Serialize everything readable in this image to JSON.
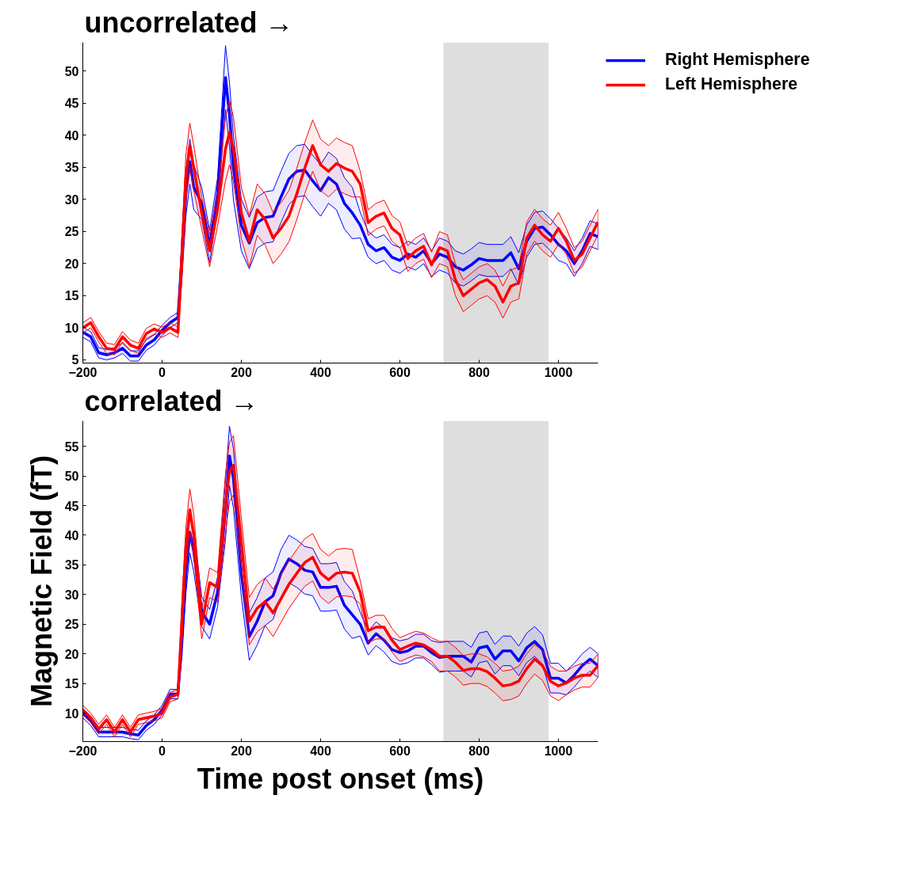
{
  "chart_data": [
    {
      "type": "line",
      "title": "uncorrelated →",
      "legend": "right",
      "x": [
        -200,
        -180,
        -160,
        -140,
        -120,
        -100,
        -80,
        -60,
        -40,
        -20,
        0,
        20,
        40,
        50,
        60,
        70,
        80,
        100,
        120,
        140,
        160,
        170,
        180,
        200,
        220,
        240,
        260,
        280,
        300,
        320,
        340,
        360,
        380,
        400,
        420,
        440,
        460,
        480,
        500,
        520,
        540,
        560,
        580,
        600,
        620,
        640,
        660,
        680,
        700,
        720,
        740,
        760,
        780,
        800,
        820,
        840,
        860,
        880,
        900,
        920,
        940,
        960,
        980,
        1000,
        1020,
        1040,
        1060,
        1080,
        1100
      ],
      "xlim": [
        -200,
        1100
      ],
      "ylim": [
        4.5,
        54.5
      ],
      "xticks": [
        -200,
        0,
        200,
        400,
        600,
        800,
        1000
      ],
      "yticks": [
        5,
        10,
        15,
        20,
        25,
        30,
        35,
        40,
        45,
        50
      ],
      "bands": [
        {
          "axis": "x",
          "from": 710,
          "to": 975,
          "color": "#dedede"
        }
      ],
      "series": [
        {
          "name": "Right Hemisphere",
          "color": "#0000ff",
          "values": [
            9.3,
            8.6,
            6.1,
            5.8,
            6.1,
            6.8,
            5.6,
            5.6,
            7.3,
            8.1,
            9.6,
            10.8,
            11.6,
            21,
            30.9,
            35.9,
            31.9,
            29.4,
            22.7,
            30.9,
            49,
            43.3,
            34.9,
            26,
            23.2,
            26.4,
            27.2,
            27.4,
            30.4,
            33.2,
            34.4,
            34.6,
            32.9,
            31.4,
            33.4,
            32.4,
            29.4,
            27.9,
            26,
            23,
            22,
            22.5,
            21,
            20.5,
            21.5,
            21,
            22,
            20,
            21.5,
            21,
            19.5,
            19,
            19.8,
            20.8,
            20.5,
            20.5,
            20.5,
            21.7,
            19.2,
            23.5,
            25.5,
            25.7,
            24.5,
            23,
            22,
            20,
            22,
            24.7,
            24.2
          ],
          "lower": [
            8.5,
            7.8,
            5.3,
            5.0,
            5.3,
            6.0,
            4.8,
            4.8,
            6.5,
            7.3,
            8.8,
            10.0,
            10.8,
            17.5,
            27.4,
            32.4,
            28.4,
            26.9,
            20.2,
            28.4,
            44,
            38.3,
            29.9,
            22,
            19.2,
            22.4,
            23.2,
            23.4,
            26.4,
            29.2,
            30.4,
            30.6,
            28.9,
            27.4,
            29.4,
            28.4,
            25.4,
            23.9,
            24,
            21,
            20,
            20.5,
            19,
            18.5,
            19.5,
            19,
            20,
            18,
            19,
            18.5,
            17,
            16.5,
            17.3,
            18.3,
            18,
            18,
            18,
            19.2,
            16.7,
            21,
            23,
            23.2,
            22,
            20.5,
            20,
            18,
            20,
            22.7,
            22.2
          ],
          "upper": [
            10.1,
            9.4,
            6.9,
            6.6,
            6.9,
            7.6,
            6.4,
            6.4,
            8.1,
            8.9,
            10.4,
            11.6,
            12.4,
            24.5,
            34.4,
            39.4,
            35.4,
            31.9,
            25.2,
            33.4,
            54,
            48.3,
            39.9,
            30,
            27.2,
            30.4,
            31.2,
            31.4,
            34.4,
            37.2,
            38.4,
            38.6,
            36.9,
            35.4,
            37.4,
            36.4,
            33.4,
            31.9,
            28,
            25,
            24,
            24.5,
            23,
            22.5,
            23.5,
            23,
            24,
            22,
            24,
            23.5,
            22,
            21.5,
            22.3,
            23.3,
            23,
            23,
            23,
            24.2,
            21.7,
            26,
            28,
            28.2,
            27,
            25.5,
            24,
            22,
            24,
            26.7,
            26.2
          ]
        },
        {
          "name": "Left Hemisphere",
          "color": "#ff0000",
          "values": [
            10,
            10.8,
            8.6,
            6.8,
            6.6,
            8.6,
            7.3,
            6.8,
            9.1,
            9.8,
            9.3,
            10,
            9.3,
            21,
            33.4,
            38.4,
            34.9,
            27.9,
            22,
            28.4,
            37.9,
            40.4,
            37.9,
            27.9,
            23.5,
            28.4,
            26.9,
            24,
            25.5,
            27.4,
            30.9,
            34.9,
            38.4,
            35.4,
            34.4,
            35.6,
            34.9,
            34.4,
            32.4,
            26.4,
            27.4,
            27.9,
            25.5,
            24.5,
            20.8,
            22,
            22.7,
            19.8,
            22.5,
            22,
            17.5,
            15,
            16,
            17,
            17.5,
            16.5,
            14,
            16.5,
            17,
            24,
            26,
            24.5,
            23.5,
            25.5,
            23.5,
            20.5,
            21.5,
            24,
            26.5
          ],
          "lower": [
            9.2,
            10.0,
            7.8,
            6.0,
            5.8,
            7.8,
            6.5,
            6.0,
            8.3,
            9.0,
            8.5,
            9.2,
            8.5,
            17.5,
            29.9,
            34.9,
            31.4,
            25.4,
            19.5,
            25.9,
            32.9,
            35.4,
            32.9,
            23.9,
            19.5,
            24.4,
            22.9,
            20,
            21.5,
            23.4,
            26.9,
            30.9,
            34.4,
            31.4,
            30.4,
            31.6,
            30.9,
            30.4,
            30.4,
            24.4,
            25.4,
            25.9,
            23.5,
            22.5,
            18.8,
            20,
            20.7,
            17.8,
            20,
            19.5,
            15,
            12.5,
            13.5,
            14.5,
            15,
            14,
            11.5,
            14,
            14.5,
            21.5,
            23.5,
            22,
            21,
            23,
            21.5,
            18.5,
            19.5,
            22,
            24.5
          ],
          "upper": [
            10.8,
            11.6,
            9.4,
            7.6,
            7.4,
            9.4,
            8.1,
            7.6,
            9.9,
            10.6,
            10.1,
            10.8,
            10.1,
            24.5,
            36.9,
            41.9,
            38.4,
            30.4,
            24.5,
            30.9,
            42.9,
            45.4,
            42.9,
            31.9,
            27.5,
            32.4,
            30.9,
            28,
            29.5,
            31.4,
            34.9,
            38.9,
            42.4,
            39.4,
            38.4,
            39.6,
            38.9,
            38.4,
            34.4,
            28.4,
            29.4,
            29.9,
            27.5,
            26.5,
            22.8,
            24,
            24.7,
            21.8,
            25,
            24.5,
            20,
            17.5,
            18.5,
            19.5,
            20,
            19,
            16.5,
            19,
            19.5,
            26.5,
            28.5,
            27,
            26,
            28,
            25.5,
            22.5,
            23.5,
            26,
            28.5
          ]
        }
      ]
    },
    {
      "type": "line",
      "title": "correlated →",
      "xlabel": "Time post onset (ms)",
      "ylabel": "Magnetic Field (fT)",
      "x": [
        -200,
        -180,
        -160,
        -140,
        -120,
        -100,
        -80,
        -60,
        -40,
        -20,
        0,
        20,
        40,
        50,
        60,
        70,
        80,
        100,
        120,
        140,
        160,
        170,
        180,
        200,
        220,
        240,
        260,
        280,
        300,
        320,
        340,
        360,
        380,
        400,
        420,
        440,
        460,
        480,
        500,
        520,
        540,
        560,
        580,
        600,
        620,
        640,
        660,
        680,
        700,
        720,
        740,
        760,
        780,
        800,
        820,
        840,
        860,
        880,
        900,
        920,
        940,
        960,
        980,
        1000,
        1020,
        1040,
        1060,
        1080,
        1100
      ],
      "xlim": [
        -200,
        1100
      ],
      "ylim": [
        5.2,
        59.3
      ],
      "xticks": [
        -200,
        0,
        200,
        400,
        600,
        800,
        1000
      ],
      "yticks": [
        10,
        15,
        20,
        25,
        30,
        35,
        40,
        45,
        50,
        55
      ],
      "bands": [
        {
          "axis": "x",
          "from": 710,
          "to": 975,
          "color": "#dedede"
        }
      ],
      "series": [
        {
          "color": "#0000ff",
          "values": [
            10,
            8.7,
            6.8,
            6.8,
            6.8,
            6.8,
            6.5,
            6.3,
            7.9,
            8.9,
            10.5,
            13.2,
            13.2,
            22.9,
            33.6,
            40.5,
            37.3,
            27.1,
            25,
            30.4,
            44.3,
            53.4,
            49.6,
            33.6,
            22.9,
            25.5,
            28.8,
            29.8,
            33.6,
            36,
            35.2,
            34.1,
            33.8,
            31.2,
            31.2,
            31.4,
            28.2,
            26.6,
            25,
            21.8,
            23.4,
            22.3,
            20.7,
            20.2,
            20.5,
            21.3,
            21.3,
            20.2,
            19.4,
            19.6,
            19.6,
            19.6,
            18.6,
            21,
            21.3,
            19.1,
            20.5,
            20.5,
            18.8,
            21,
            22.1,
            20.7,
            15.9,
            15.9,
            15.1,
            16.4,
            18,
            19.1,
            18
          ],
          "lower": [
            9.2,
            7.9,
            6.0,
            6.0,
            6.0,
            6.0,
            5.7,
            5.5,
            7.1,
            8.1,
            9.7,
            12.4,
            12.4,
            19.4,
            30.1,
            37,
            33.8,
            24.6,
            22.5,
            27.9,
            39.3,
            48.4,
            44.6,
            29.6,
            18.9,
            21.5,
            24.8,
            25.8,
            29.6,
            32,
            31.2,
            30.1,
            29.8,
            27.2,
            27.2,
            27.4,
            24.2,
            22.6,
            23,
            19.8,
            21.4,
            20.3,
            18.7,
            18.2,
            18.5,
            19.3,
            19.3,
            18.2,
            16.9,
            17.1,
            17.1,
            17.1,
            16.1,
            18.5,
            18.8,
            16.6,
            18,
            18,
            16.3,
            18.5,
            19.6,
            18.2,
            13.4,
            13.4,
            13.1,
            14.4,
            16,
            17.1,
            16
          ],
          "upper": [
            10.8,
            9.5,
            7.6,
            7.6,
            7.6,
            7.6,
            7.3,
            7.1,
            8.7,
            9.7,
            11.3,
            14.0,
            14.0,
            26.4,
            37.1,
            44,
            40.8,
            29.6,
            27.5,
            32.9,
            49.3,
            58.4,
            54.6,
            37.6,
            26.9,
            29.5,
            32.8,
            33.8,
            37.6,
            40,
            39.2,
            38.1,
            37.8,
            35.2,
            35.2,
            35.4,
            32.2,
            30.6,
            27,
            23.8,
            25.4,
            24.3,
            22.7,
            22.2,
            22.5,
            23.3,
            23.3,
            22.2,
            21.9,
            22.1,
            22.1,
            22.1,
            21.1,
            23.5,
            23.8,
            21.6,
            23,
            23,
            21.3,
            23.5,
            24.6,
            23.2,
            18.4,
            18.4,
            17.1,
            18.4,
            20,
            21.1,
            20
          ]
        },
        {
          "color": "#ff0000",
          "values": [
            10.5,
            9.2,
            7.3,
            8.9,
            6.8,
            8.9,
            6.8,
            8.9,
            9.2,
            9.5,
            10,
            12.7,
            13.2,
            25.5,
            37.9,
            44.3,
            40,
            25,
            32,
            31.2,
            45.4,
            50.7,
            51.8,
            38.9,
            25.5,
            27.7,
            28.8,
            26.9,
            29.3,
            31.7,
            33.6,
            35.4,
            36.3,
            33.6,
            32.5,
            33.6,
            33.8,
            33.6,
            30.4,
            23.9,
            24.5,
            24.5,
            22.3,
            20.7,
            21.3,
            21.8,
            21.5,
            20.7,
            19.6,
            19.6,
            18.6,
            17.2,
            17.5,
            17.5,
            17,
            15.9,
            14.6,
            14.8,
            15.4,
            17.5,
            19.1,
            18,
            15.4,
            14.6,
            15.1,
            15.9,
            16.4,
            16.4,
            18
          ],
          "lower": [
            9.7,
            8.4,
            6.5,
            8.1,
            6.0,
            8.1,
            6.0,
            8.1,
            8.4,
            8.7,
            9.2,
            11.9,
            12.4,
            22,
            34.4,
            40.8,
            36.5,
            22.5,
            29.5,
            28.7,
            40.4,
            45.7,
            46.8,
            34.9,
            21.5,
            23.7,
            24.8,
            22.9,
            25.3,
            27.7,
            29.6,
            31.4,
            32.3,
            29.6,
            28.5,
            29.6,
            29.8,
            29.6,
            28.4,
            21.9,
            22.5,
            22.5,
            20.3,
            18.7,
            19.3,
            19.8,
            19.5,
            18.7,
            17.1,
            17.1,
            16.1,
            14.7,
            15,
            15,
            14.5,
            13.4,
            12.1,
            12.3,
            12.9,
            15,
            16.6,
            15.5,
            12.9,
            12.1,
            13.1,
            13.9,
            14.4,
            14.4,
            16
          ],
          "upper": [
            11.3,
            10.0,
            8.1,
            9.7,
            7.6,
            9.7,
            7.6,
            9.7,
            10.0,
            10.3,
            10.8,
            13.5,
            14.0,
            29,
            41.4,
            47.8,
            43.5,
            27.5,
            34.5,
            33.7,
            50.4,
            55.7,
            56.8,
            42.9,
            29.5,
            31.7,
            32.8,
            30.9,
            33.3,
            35.7,
            37.6,
            39.4,
            40.3,
            37.6,
            36.5,
            37.6,
            37.8,
            37.6,
            32.4,
            25.9,
            26.5,
            26.5,
            24.3,
            22.7,
            23.3,
            23.8,
            23.5,
            22.7,
            22.1,
            22.1,
            21.1,
            19.7,
            20,
            20,
            19.5,
            18.4,
            17.1,
            17.3,
            17.9,
            20,
            21.6,
            20.5,
            17.9,
            17.1,
            17.1,
            17.9,
            18.4,
            18.4,
            20
          ]
        }
      ]
    }
  ]
}
